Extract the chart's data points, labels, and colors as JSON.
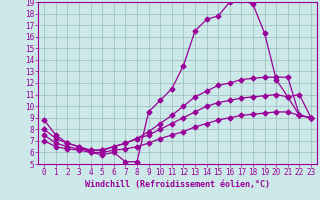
{
  "xlabel": "Windchill (Refroidissement éolien,°C)",
  "bg_color": "#cce8e8",
  "line_color": "#990099",
  "grid_color": "#99bbbb",
  "xlim": [
    -0.5,
    23.5
  ],
  "ylim": [
    5,
    19
  ],
  "yticks": [
    5,
    6,
    7,
    8,
    9,
    10,
    11,
    12,
    13,
    14,
    15,
    16,
    17,
    18,
    19
  ],
  "xticks": [
    0,
    1,
    2,
    3,
    4,
    5,
    6,
    7,
    8,
    9,
    10,
    11,
    12,
    13,
    14,
    15,
    16,
    17,
    18,
    19,
    20,
    21,
    22,
    23
  ],
  "line1_x": [
    0,
    1,
    2,
    3,
    4,
    5,
    6,
    7,
    8,
    9,
    10,
    11,
    12,
    13,
    14,
    15,
    16,
    17,
    18,
    19,
    20,
    21,
    22,
    23
  ],
  "line1_y": [
    8.8,
    7.5,
    6.8,
    6.5,
    6.0,
    5.8,
    6.0,
    5.2,
    5.2,
    9.5,
    10.5,
    11.5,
    13.5,
    16.5,
    17.5,
    17.8,
    19.0,
    19.2,
    18.8,
    16.3,
    12.3,
    10.8,
    11.0,
    9.0
  ],
  "line2_x": [
    0,
    1,
    2,
    3,
    4,
    5,
    6,
    7,
    8,
    9,
    10,
    11,
    12,
    13,
    14,
    15,
    16,
    17,
    18,
    19,
    20,
    21,
    22,
    23
  ],
  "line2_y": [
    8.0,
    7.2,
    6.8,
    6.5,
    6.2,
    6.2,
    6.5,
    6.8,
    7.2,
    7.8,
    8.5,
    9.2,
    10.0,
    10.8,
    11.3,
    11.8,
    12.0,
    12.3,
    12.4,
    12.5,
    12.5,
    12.5,
    9.2,
    9.0
  ],
  "line3_x": [
    0,
    1,
    2,
    3,
    4,
    5,
    6,
    7,
    8,
    9,
    10,
    11,
    12,
    13,
    14,
    15,
    16,
    17,
    18,
    19,
    20,
    21,
    22,
    23
  ],
  "line3_y": [
    7.5,
    6.8,
    6.5,
    6.3,
    6.2,
    6.2,
    6.5,
    6.8,
    7.2,
    7.5,
    8.0,
    8.5,
    9.0,
    9.5,
    10.0,
    10.3,
    10.5,
    10.7,
    10.8,
    10.9,
    11.0,
    10.8,
    9.2,
    9.0
  ],
  "line4_x": [
    0,
    1,
    2,
    3,
    4,
    5,
    6,
    7,
    8,
    9,
    10,
    11,
    12,
    13,
    14,
    15,
    16,
    17,
    18,
    19,
    20,
    21,
    22,
    23
  ],
  "line4_y": [
    7.0,
    6.5,
    6.3,
    6.2,
    6.0,
    6.0,
    6.2,
    6.3,
    6.5,
    6.8,
    7.2,
    7.5,
    7.8,
    8.2,
    8.5,
    8.8,
    9.0,
    9.2,
    9.3,
    9.4,
    9.5,
    9.5,
    9.2,
    9.0
  ],
  "marker": "D",
  "markersize": 2.5,
  "linewidth": 0.9,
  "fontsize_label": 6,
  "fontsize_tick": 5.5
}
